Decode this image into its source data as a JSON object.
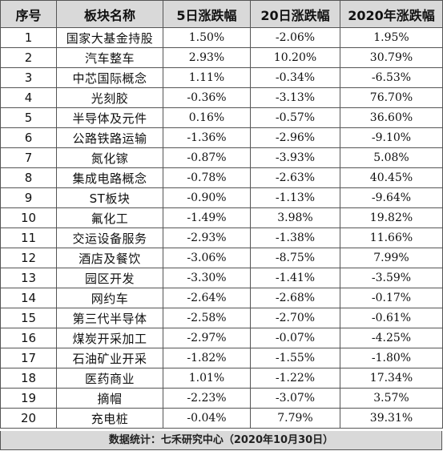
{
  "headers": [
    "序号",
    "板块名称",
    "5日涨跌幅",
    "20日涨跌幅",
    "2020年涨跌幅"
  ],
  "rows": [
    [
      "1",
      "国家大基金持股",
      "1.50%",
      "-2.06%",
      "1.95%"
    ],
    [
      "2",
      "汽车整车",
      "2.93%",
      "10.20%",
      "30.79%"
    ],
    [
      "3",
      "中芯国际概念",
      "1.11%",
      "-0.34%",
      "-6.53%"
    ],
    [
      "4",
      "光刻胶",
      "-0.36%",
      "-3.13%",
      "76.70%"
    ],
    [
      "5",
      "半导体及元件",
      "0.16%",
      "-0.57%",
      "36.60%"
    ],
    [
      "6",
      "公路铁路运输",
      "-1.36%",
      "-2.96%",
      "-9.10%"
    ],
    [
      "7",
      "氮化镓",
      "-0.87%",
      "-3.93%",
      "5.08%"
    ],
    [
      "8",
      "集成电路概念",
      "-0.78%",
      "-2.63%",
      "40.45%"
    ],
    [
      "9",
      "ST板块",
      "-0.90%",
      "-1.13%",
      "-9.64%"
    ],
    [
      "10",
      "氟化工",
      "-1.49%",
      "3.98%",
      "19.82%"
    ],
    [
      "11",
      "交运设备服务",
      "-2.93%",
      "-1.38%",
      "11.66%"
    ],
    [
      "12",
      "酒店及餐饮",
      "-3.06%",
      "-8.75%",
      "7.99%"
    ],
    [
      "13",
      "园区开发",
      "-3.30%",
      "-1.41%",
      "-3.59%"
    ],
    [
      "14",
      "网约车",
      "-2.64%",
      "-2.68%",
      "-0.17%"
    ],
    [
      "15",
      "第三代半导体",
      "-2.58%",
      "-2.70%",
      "-0.61%"
    ],
    [
      "16",
      "煤炭开采加工",
      "-2.97%",
      "-0.07%",
      "-4.25%"
    ],
    [
      "17",
      "石油矿业开采",
      "-1.82%",
      "-1.55%",
      "-1.80%"
    ],
    [
      "18",
      "医药商业",
      "1.01%",
      "-1.22%",
      "17.34%"
    ],
    [
      "19",
      "摘帽",
      "-2.23%",
      "-3.07%",
      "3.57%"
    ],
    [
      "20",
      "充电桩",
      "-0.04%",
      "7.79%",
      "39.31%"
    ]
  ],
  "footer": "数据统计：七禾研究中心（2020年10月30日）"
}
